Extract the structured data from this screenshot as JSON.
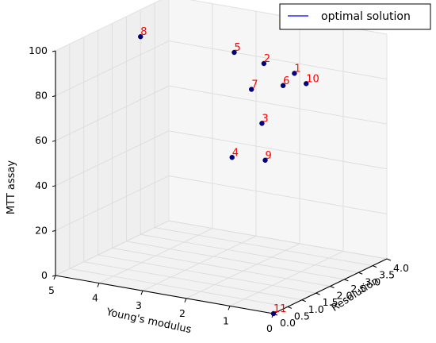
{
  "chart_data": {
    "type": "scatter",
    "title": "",
    "xlabel": "Resolution",
    "ylabel": "Young's modulus",
    "zlabel": "MTT assay",
    "xlim": [
      0,
      4
    ],
    "ylim": [
      0,
      5
    ],
    "zlim": [
      0,
      100
    ],
    "x_ticks": [
      "0.0",
      "0.5",
      "1.0",
      "1.5",
      "2.0",
      "2.5",
      "3.0",
      "3.5",
      "4.0"
    ],
    "y_ticks": [
      "0",
      "1",
      "2",
      "3",
      "4",
      "5"
    ],
    "z_ticks": [
      "0",
      "20",
      "40",
      "60",
      "80",
      "100"
    ],
    "grid": true,
    "legend": {
      "placement": "top-right",
      "entries": [
        {
          "name": "optimal solution",
          "color": "#0000ff"
        }
      ]
    },
    "point_color": "#00008b",
    "label_color": "#ff0000",
    "points": [
      {
        "label": "1",
        "x": 3.2,
        "y": 1.6,
        "z": 82
      },
      {
        "label": "2",
        "x": 3.2,
        "y": 2.3,
        "z": 84
      },
      {
        "label": "3",
        "x": 1.9,
        "y": 1.5,
        "z": 68
      },
      {
        "label": "4",
        "x": 1.0,
        "y": 1.6,
        "z": 58
      },
      {
        "label": "5",
        "x": 4.0,
        "y": 3.5,
        "z": 80
      },
      {
        "label": "6",
        "x": 2.8,
        "y": 1.6,
        "z": 79
      },
      {
        "label": "7",
        "x": 2.3,
        "y": 2.0,
        "z": 79
      },
      {
        "label": "8",
        "x": 3.0,
        "y": 5.0,
        "z": 88
      },
      {
        "label": "9",
        "x": 1.4,
        "y": 1.1,
        "z": 56
      },
      {
        "label": "10",
        "x": 3.0,
        "y": 1.2,
        "z": 80
      },
      {
        "label": "11",
        "x": 0.0,
        "y": 0.0,
        "z": 0
      }
    ],
    "optimal_solution": {
      "from": {
        "x": 4.0,
        "y": 2.0,
        "z": 100
      },
      "to": {
        "x": 4.0,
        "y": 1.4,
        "z": 100
      }
    }
  }
}
